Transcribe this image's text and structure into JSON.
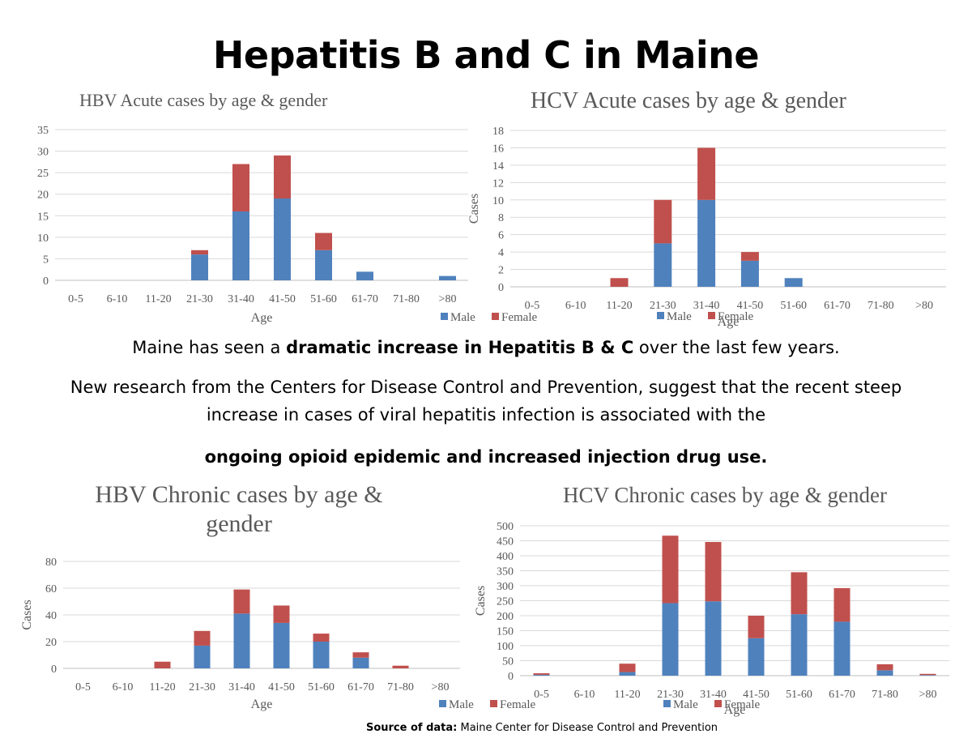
{
  "page": {
    "title": "Hepatitis B and C in Maine",
    "para1_prefix": "Maine has seen a ",
    "para1_bold": "dramatic increase in Hepatitis B & C",
    "para1_suffix": " over the last few years.",
    "para2_line1": "New research from the Centers for Disease Control and Prevention, suggest that the recent steep",
    "para2_line2": "increase in cases of viral hepatitis infection is associated with the",
    "para3": "ongoing opioid epidemic and increased injection drug use.",
    "source_label": "Source of data:",
    "source_text": " Maine Center for Disease Control and Prevention"
  },
  "colors": {
    "male": "#4f81bd",
    "female": "#c0504d"
  },
  "chart_data": [
    {
      "id": "hbv-acute",
      "type": "bar",
      "stacked": true,
      "title": [
        "HBV Acute cases by age & gender"
      ],
      "categories": [
        "0-5",
        "6-10",
        "11-20",
        "21-30",
        "31-40",
        "41-50",
        "51-60",
        "61-70",
        "71-80",
        ">80"
      ],
      "series": [
        {
          "name": "Male",
          "values": [
            0,
            0,
            0,
            6,
            16,
            19,
            7,
            2,
            0,
            1
          ]
        },
        {
          "name": "Female",
          "values": [
            0,
            0,
            0,
            1,
            11,
            10,
            4,
            0,
            0,
            0
          ]
        }
      ],
      "xlabel": "Age",
      "ylabel": "",
      "ylim": [
        0,
        35
      ],
      "yticks": [
        0,
        5,
        10,
        15,
        20,
        25,
        30,
        35
      ],
      "grid": true,
      "legend": "bottom-right"
    },
    {
      "id": "hcv-acute",
      "type": "bar",
      "stacked": true,
      "title": [
        "HCV Acute cases by age & gender"
      ],
      "categories": [
        "0-5",
        "6-10",
        "11-20",
        "21-30",
        "31-40",
        "41-50",
        "51-60",
        "61-70",
        "71-80",
        ">80"
      ],
      "series": [
        {
          "name": "Male",
          "values": [
            0,
            0,
            0,
            5,
            10,
            3,
            1,
            0,
            0,
            0
          ]
        },
        {
          "name": "Female",
          "values": [
            0,
            0,
            1,
            5,
            6,
            1,
            0,
            0,
            0,
            0
          ]
        }
      ],
      "xlabel": "Age",
      "ylabel": "Cases",
      "ylim": [
        0,
        18
      ],
      "yticks": [
        0,
        2,
        4,
        6,
        8,
        10,
        12,
        14,
        16,
        18
      ],
      "grid": true,
      "legend": "bottom-left"
    },
    {
      "id": "hbv-chronic",
      "type": "bar",
      "stacked": true,
      "title": [
        "HBV Chronic cases by age &",
        "gender"
      ],
      "categories": [
        "0-5",
        "6-10",
        "11-20",
        "21-30",
        "31-40",
        "41-50",
        "51-60",
        "61-70",
        "71-80",
        ">80"
      ],
      "series": [
        {
          "name": "Male",
          "values": [
            0,
            0,
            0,
            17,
            41,
            34,
            20,
            8,
            0,
            0
          ]
        },
        {
          "name": "Female",
          "values": [
            0,
            0,
            5,
            11,
            18,
            13,
            6,
            4,
            2,
            0
          ]
        }
      ],
      "xlabel": "Age",
      "ylabel": "Cases",
      "ylim": [
        0,
        80
      ],
      "yticks": [
        0,
        20,
        40,
        60,
        80
      ],
      "grid": true,
      "legend": "bottom-right"
    },
    {
      "id": "hcv-chronic",
      "type": "bar",
      "stacked": true,
      "title": [
        "HCV Chronic cases by age & gender"
      ],
      "categories": [
        "0-5",
        "6-10",
        "11-20",
        "21-30",
        "31-40",
        "41-50",
        "51-60",
        "61-70",
        "71-80",
        ">80"
      ],
      "series": [
        {
          "name": "Male",
          "values": [
            3,
            0,
            12,
            242,
            248,
            125,
            205,
            180,
            18,
            2
          ]
        },
        {
          "name": "Female",
          "values": [
            5,
            0,
            28,
            225,
            198,
            75,
            140,
            112,
            20,
            4
          ]
        }
      ],
      "xlabel": "Age",
      "ylabel": "Cases",
      "ylim": [
        0,
        500
      ],
      "yticks": [
        0,
        50,
        100,
        150,
        200,
        250,
        300,
        350,
        400,
        450,
        500
      ],
      "grid": true,
      "legend": "bottom-left"
    }
  ]
}
